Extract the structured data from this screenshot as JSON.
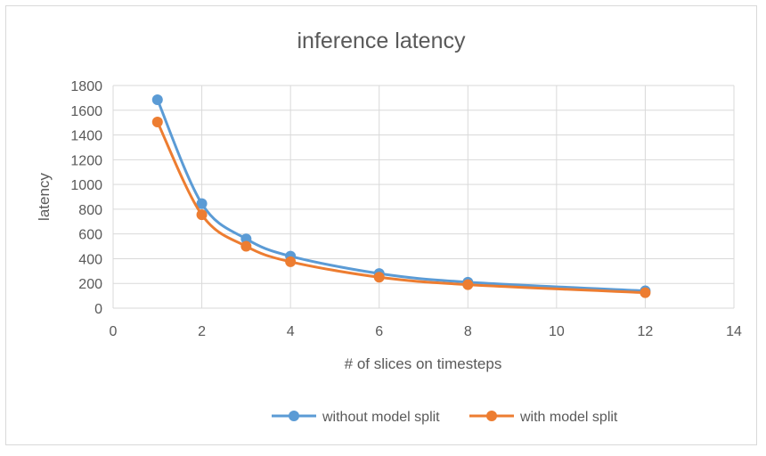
{
  "chart_data": {
    "type": "scatter",
    "title": "inference latency",
    "xlabel": "# of slices on timesteps",
    "ylabel": "latency",
    "xlim": [
      0,
      14
    ],
    "ylim": [
      0,
      1800
    ],
    "xticks": [
      0,
      2,
      4,
      6,
      8,
      10,
      12,
      14
    ],
    "yticks": [
      0,
      200,
      400,
      600,
      800,
      1000,
      1200,
      1400,
      1600,
      1800
    ],
    "grid": true,
    "smooth_lines": true,
    "legend_position": "bottom",
    "series": [
      {
        "name": "without model split",
        "color": "#5b9bd5",
        "x": [
          1,
          2,
          3,
          4,
          6,
          8,
          12
        ],
        "y": [
          1685,
          845,
          560,
          420,
          280,
          210,
          140
        ]
      },
      {
        "name": "with model split",
        "color": "#ed7d31",
        "x": [
          1,
          2,
          3,
          4,
          6,
          8,
          12
        ],
        "y": [
          1505,
          755,
          500,
          375,
          250,
          190,
          125
        ]
      }
    ]
  }
}
